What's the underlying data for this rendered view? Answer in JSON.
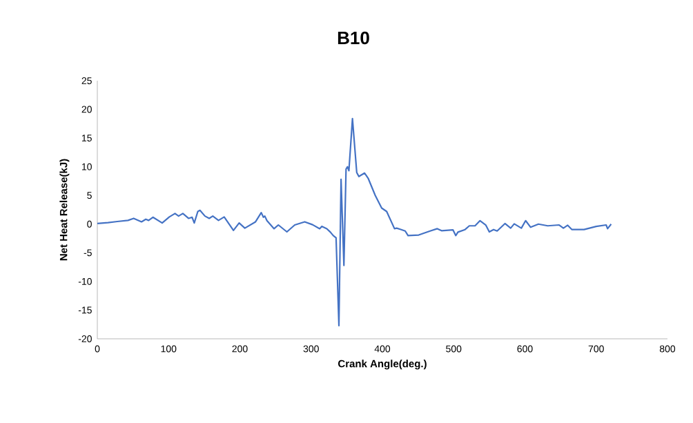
{
  "chart_data": {
    "type": "line",
    "title": "B10",
    "xlabel": "Crank Angle(deg.)",
    "ylabel": "Net Heat Release(kJ)",
    "xlim": [
      0,
      800
    ],
    "ylim": [
      -20,
      25
    ],
    "xticks": [
      0,
      100,
      200,
      300,
      400,
      500,
      600,
      700,
      800
    ],
    "yticks": [
      -20,
      -15,
      -10,
      -5,
      0,
      5,
      10,
      15,
      20,
      25
    ],
    "series": [
      {
        "color": "#4472c4",
        "x": [
          0,
          15,
          28,
          43,
          51,
          62,
          68,
          72,
          78,
          91,
          101,
          109,
          114,
          120,
          128,
          133,
          136,
          141,
          144,
          151,
          157,
          162,
          170,
          178,
          191,
          199,
          207,
          222,
          230,
          233,
          235,
          238,
          248,
          254,
          266,
          277,
          291,
          302,
          312,
          315,
          322,
          327,
          331,
          335,
          339,
          342,
          346,
          349,
          351,
          353,
          358,
          364,
          367,
          375,
          380,
          390,
          399,
          406,
          417,
          420,
          425,
          432,
          436,
          451,
          467,
          477,
          483,
          499,
          503,
          506,
          516,
          522,
          530,
          537,
          545,
          550,
          556,
          561,
          572,
          580,
          585,
          595,
          601,
          608,
          619,
          632,
          648,
          654,
          660,
          666,
          683,
          700,
          714,
          716,
          721
        ],
        "values": [
          0.1,
          0.25,
          0.45,
          0.65,
          1.0,
          0.4,
          0.85,
          0.65,
          1.2,
          0.2,
          1.25,
          1.85,
          1.4,
          1.85,
          1.0,
          1.2,
          0.2,
          2.2,
          2.4,
          1.4,
          1.0,
          1.4,
          0.65,
          1.25,
          -1.1,
          0.2,
          -0.7,
          0.4,
          2.0,
          1.2,
          1.4,
          0.6,
          -0.8,
          -0.15,
          -1.35,
          -0.15,
          0.4,
          -0.1,
          -0.8,
          -0.4,
          -0.8,
          -1.4,
          -2.0,
          -2.4,
          -17.7,
          7.8,
          -7.2,
          9.6,
          10.0,
          9.3,
          18.4,
          9.0,
          8.3,
          8.9,
          8.0,
          5.0,
          2.8,
          2.2,
          -0.8,
          -0.7,
          -0.9,
          -1.2,
          -2.0,
          -1.9,
          -1.2,
          -0.8,
          -1.15,
          -1.0,
          -2.0,
          -1.4,
          -0.95,
          -0.3,
          -0.3,
          0.6,
          -0.15,
          -1.35,
          -0.95,
          -1.2,
          0.1,
          -0.7,
          0.05,
          -0.7,
          0.6,
          -0.55,
          0,
          -0.3,
          -0.15,
          -0.7,
          -0.2,
          -0.95,
          -0.95,
          -0.4,
          -0.15,
          -0.8,
          0
        ]
      }
    ]
  }
}
